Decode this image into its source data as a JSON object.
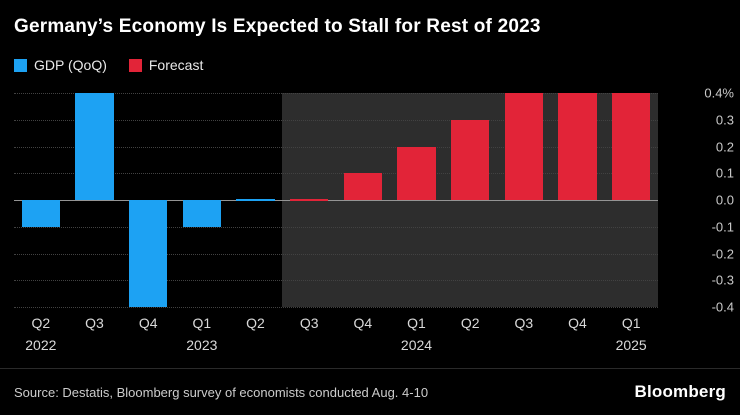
{
  "title": "Germany’s Economy Is Expected to Stall for Rest of 2023",
  "legend": {
    "items": [
      {
        "label": "GDP (QoQ)",
        "color": "#1da2f3"
      },
      {
        "label": "Forecast",
        "color": "#e22438"
      }
    ]
  },
  "source": "Source: Destatis, Bloomberg survey of economists conducted Aug. 4-10",
  "brand": "Bloomberg",
  "chart_data": {
    "type": "bar",
    "title": "Germany’s Economy Is Expected to Stall for Rest of 2023",
    "categories": [
      "Q2",
      "Q3",
      "Q4",
      "Q1",
      "Q2",
      "Q3",
      "Q4",
      "Q1",
      "Q2",
      "Q3",
      "Q4",
      "Q1"
    ],
    "year_labels": [
      {
        "index": 0,
        "label": "2022"
      },
      {
        "index": 3,
        "label": "2023"
      },
      {
        "index": 7,
        "label": "2024"
      },
      {
        "index": 11,
        "label": "2025"
      }
    ],
    "series": [
      {
        "name": "GDP (QoQ)",
        "color": "#1da2f3",
        "values": [
          -0.1,
          0.4,
          -0.4,
          -0.1,
          0.0,
          null,
          null,
          null,
          null,
          null,
          null,
          null
        ]
      },
      {
        "name": "Forecast",
        "color": "#e22438",
        "values": [
          null,
          null,
          null,
          null,
          null,
          0.0,
          0.1,
          0.2,
          0.3,
          0.4,
          0.4,
          0.4
        ]
      }
    ],
    "ylim": [
      -0.4,
      0.4
    ],
    "yticks": [
      {
        "label": "0.4%",
        "value": 0.4
      },
      {
        "label": "0.3",
        "value": 0.3
      },
      {
        "label": "0.2",
        "value": 0.2
      },
      {
        "label": "0.1",
        "value": 0.1
      },
      {
        "label": "0.0",
        "value": 0.0
      },
      {
        "label": "-0.1",
        "value": -0.1
      },
      {
        "label": "-0.2",
        "value": -0.2
      },
      {
        "label": "-0.3",
        "value": -0.3
      },
      {
        "label": "-0.4",
        "value": -0.4
      }
    ],
    "forecast_start_index": 5,
    "grid": "dotted-horizontal",
    "legend_position": "top-left",
    "xlabel": "",
    "ylabel": ""
  }
}
